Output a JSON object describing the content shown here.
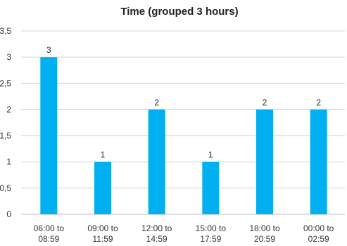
{
  "chart_data": {
    "type": "bar",
    "title": "Time (grouped 3 hours)",
    "categories": [
      [
        "06:00 to",
        "08:59"
      ],
      [
        "09:00 to",
        "11:59"
      ],
      [
        "12:00 to",
        "14:59"
      ],
      [
        "15:00 to",
        "17:59"
      ],
      [
        "18:00 to",
        "20:59"
      ],
      [
        "00:00 to",
        "02:59"
      ]
    ],
    "values": [
      3,
      1,
      2,
      1,
      2,
      2
    ],
    "data_labels": [
      "3",
      "1",
      "2",
      "1",
      "2",
      "2"
    ],
    "ylim": [
      0,
      3.5
    ],
    "yticks": [
      0,
      0.5,
      1,
      1.5,
      2,
      2.5,
      3,
      3.5
    ],
    "ytick_labels": [
      "0",
      "0,5",
      "1",
      "1,5",
      "2",
      "2,5",
      "3",
      "3,5"
    ],
    "grid": true,
    "legend": "none",
    "bar_color": "#00b0f0"
  }
}
